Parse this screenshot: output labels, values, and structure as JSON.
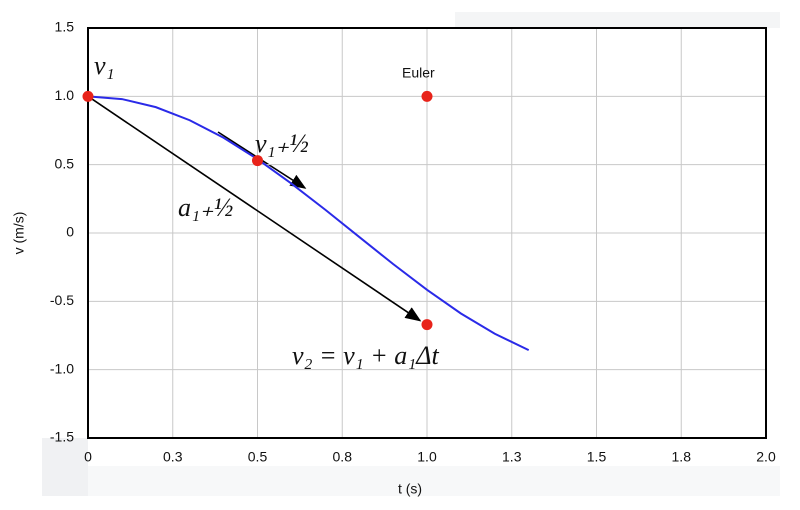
{
  "chart_data": {
    "type": "line",
    "xlabel": "t (s)",
    "ylabel": "v (m/s)",
    "x": [
      0,
      0.1,
      0.2,
      0.3,
      0.4,
      0.5,
      0.6,
      0.7,
      0.8,
      0.9,
      1.0,
      1.1,
      1.2,
      1.3
    ],
    "values": [
      1,
      0.98,
      0.921,
      0.825,
      0.697,
      0.54,
      0.362,
      0.17,
      -0.029,
      -0.227,
      -0.416,
      -0.589,
      -0.737,
      -0.857
    ],
    "color": "#2a2ae8",
    "points": {
      "x": [
        0,
        0.5,
        1.0,
        1.0
      ],
      "y": [
        1,
        0.53,
        1,
        -0.67
      ],
      "color": "#e8231a"
    },
    "annotations": [
      "v₁",
      "Euler",
      "v₁₊½",
      "a₁₊½",
      "v₂ = v₁ + a₁Δt"
    ],
    "xlim": [
      0,
      2
    ],
    "ylim": [
      -1.5,
      1.5
    ],
    "xticks": [
      0,
      {
        "value": 0.25,
        "label": "0.3"
      },
      0.5,
      {
        "value": 0.75,
        "label": "0.8"
      },
      {
        "value": 1,
        "label": "1.0"
      },
      {
        "value": 1.25,
        "label": "1.3"
      },
      1.5,
      {
        "value": 1.75,
        "label": "1.8"
      },
      {
        "value": 2,
        "label": "2.0"
      }
    ],
    "yticks": [
      1.5,
      {
        "value": 1,
        "label": "1.0"
      },
      0.5,
      0,
      -0.5,
      {
        "value": -1,
        "label": "-1.0"
      },
      -1.5
    ],
    "grid": true
  }
}
